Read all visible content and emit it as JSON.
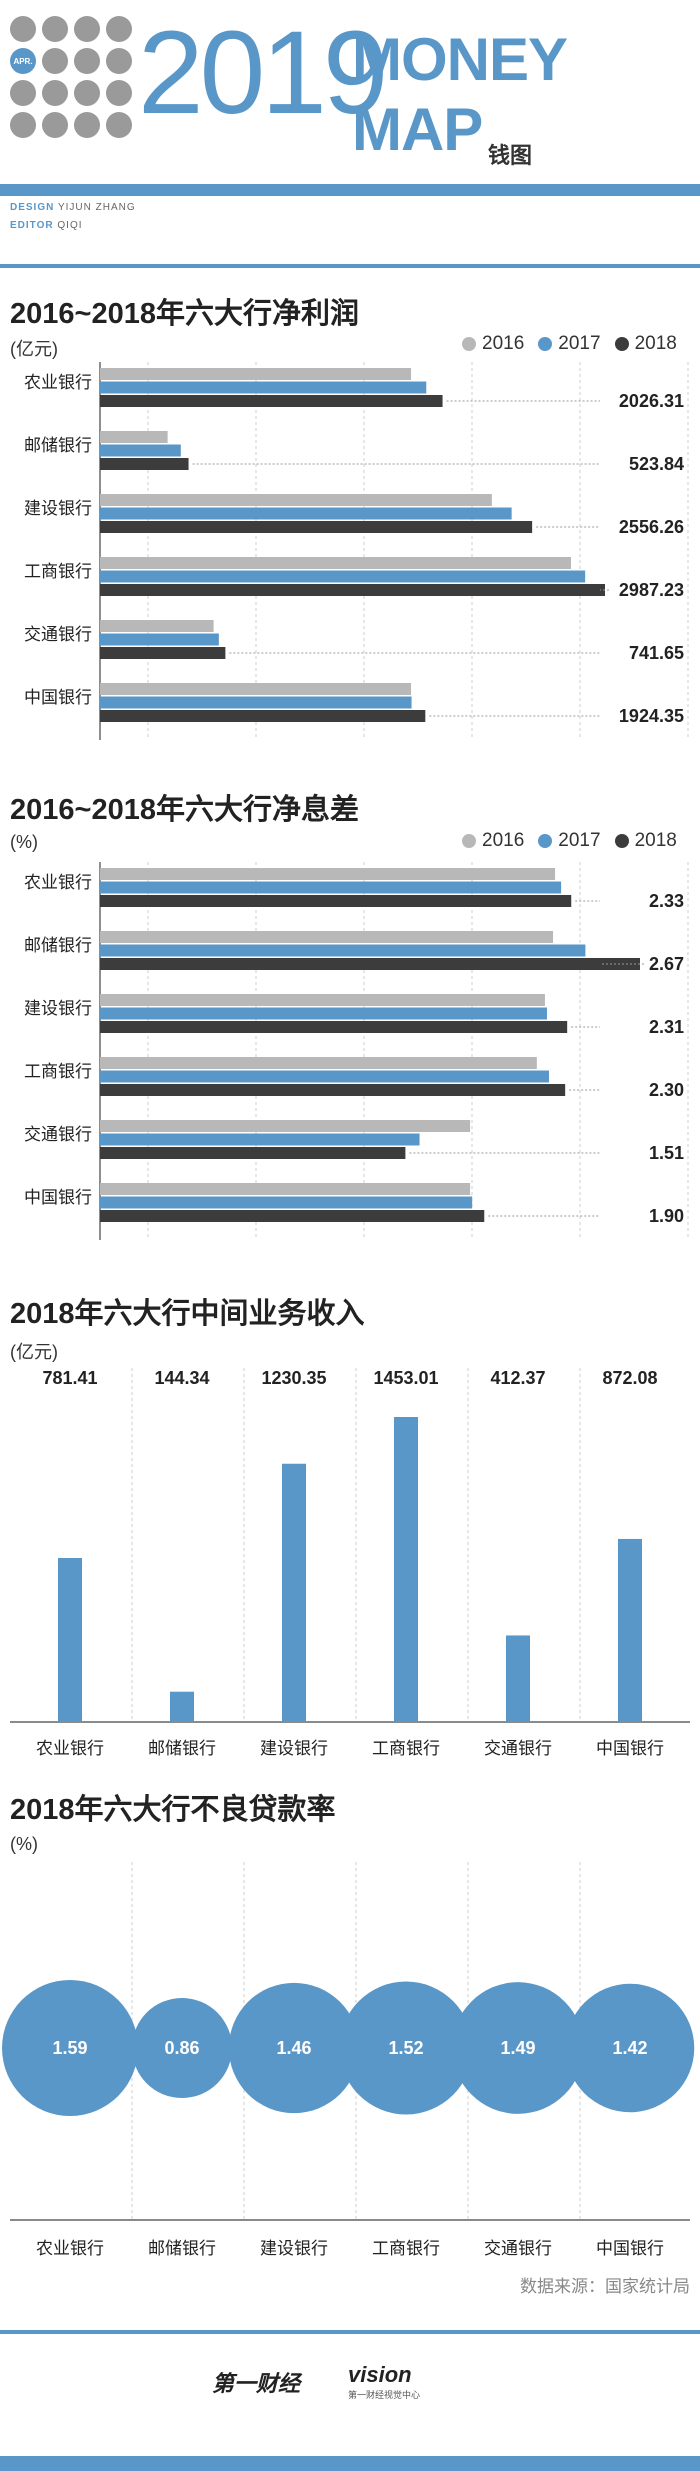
{
  "header": {
    "badge": "APR.",
    "year": "2019",
    "word1": "MONEY",
    "word2": "MAP",
    "brand": "钱图",
    "design_label": "DESIGN",
    "design_name": "YIJUN ZHANG",
    "editor_label": "EDITOR",
    "editor_name": "QIQI"
  },
  "legend": {
    "s2016": "2016",
    "s2017": "2017",
    "s2018": "2018"
  },
  "colors": {
    "s2016": "#b8b8b8",
    "s2017": "#5a97c9",
    "s2018": "#3c3c3c",
    "accent": "#5a97c9"
  },
  "chart_data": [
    {
      "type": "bar",
      "orientation": "horizontal",
      "title": "2016~2018年六大行净利润",
      "unit": "(亿元)",
      "categories": [
        "农业银行",
        "邮储银行",
        "建设银行",
        "工商银行",
        "交通银行",
        "中国银行"
      ],
      "series": [
        {
          "name": "2016",
          "values": [
            1840,
            400,
            2318,
            2786,
            672,
            1840
          ]
        },
        {
          "name": "2017",
          "values": [
            1930,
            478,
            2435,
            2870,
            703,
            1843
          ]
        },
        {
          "name": "2018",
          "values": [
            2026.31,
            523.84,
            2556.26,
            2987.23,
            741.65,
            1924.35
          ]
        }
      ],
      "labels": [
        "2026.31",
        "523.84",
        "2556.26",
        "2987.23",
        "741.65",
        "1924.35"
      ]
    },
    {
      "type": "bar",
      "orientation": "horizontal",
      "title": "2016~2018年六大行净息差",
      "unit": "(%)",
      "categories": [
        "农业银行",
        "邮储银行",
        "建设银行",
        "工商银行",
        "交通银行",
        "中国银行"
      ],
      "series": [
        {
          "name": "2016",
          "values": [
            2.25,
            2.24,
            2.2,
            2.16,
            1.83,
            1.83
          ]
        },
        {
          "name": "2017",
          "values": [
            2.28,
            2.4,
            2.21,
            2.22,
            1.58,
            1.84
          ]
        },
        {
          "name": "2018",
          "values": [
            2.33,
            2.67,
            2.31,
            2.3,
            1.51,
            1.9
          ]
        }
      ],
      "labels": [
        "2.33",
        "2.67",
        "2.31",
        "2.30",
        "1.51",
        "1.90"
      ]
    },
    {
      "type": "bar",
      "orientation": "vertical",
      "title": "2018年六大行中间业务收入",
      "unit": "(亿元)",
      "categories": [
        "农业银行",
        "邮储银行",
        "建设银行",
        "工商银行",
        "交通银行",
        "中国银行"
      ],
      "values": [
        781.41,
        144.34,
        1230.35,
        1453.01,
        412.37,
        872.08
      ],
      "labels": [
        "781.41",
        "144.34",
        "1230.35",
        "1453.01",
        "412.37",
        "872.08"
      ]
    },
    {
      "type": "bubble",
      "title": "2018年六大行不良贷款率",
      "unit": "(%)",
      "categories": [
        "农业银行",
        "邮储银行",
        "建设银行",
        "工商银行",
        "交通银行",
        "中国银行"
      ],
      "values": [
        1.59,
        0.86,
        1.46,
        1.52,
        1.49,
        1.42
      ],
      "labels": [
        "1.59",
        "0.86",
        "1.46",
        "1.52",
        "1.49",
        "1.42"
      ]
    }
  ],
  "source": "数据来源：国家统计局",
  "footer": {
    "logo1": "第一财经",
    "logo2": "vision",
    "logo2_sub": "第一财经视觉中心"
  }
}
